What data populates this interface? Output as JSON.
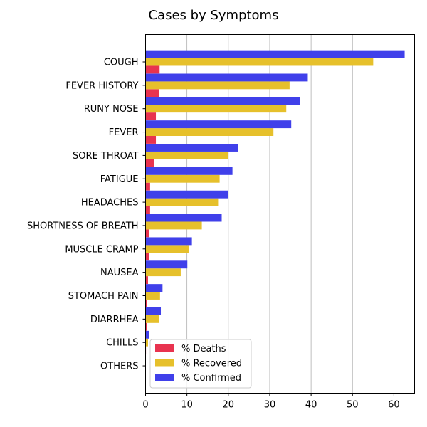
{
  "chart_data": {
    "type": "bar",
    "orientation": "horizontal",
    "title": "Cases by Symptoms",
    "xlabel": "",
    "ylabel": "",
    "xlim": [
      0,
      65
    ],
    "x_ticks": [
      0,
      10,
      20,
      30,
      40,
      50,
      60
    ],
    "grid": "vertical",
    "legend_position": "lower-left",
    "categories": [
      "COUGH",
      "FEVER HISTORY",
      "RUNY NOSE",
      "FEVER",
      "SORE THROAT",
      "FATIGUE",
      "HEADACHES",
      "SHORTNESS OF BREATH",
      "MUSCLE CRAMP",
      "NAUSEA",
      "STOMACH PAIN",
      "DIARRHEA",
      "CHILLS",
      "OTHERS"
    ],
    "series": [
      {
        "name": "% Deaths",
        "color": "#e8334f",
        "values": [
          3.4,
          3.2,
          2.5,
          2.5,
          2.1,
          1.1,
          1.1,
          0.9,
          0.8,
          0.6,
          0.4,
          0.3,
          0.1,
          0.0
        ]
      },
      {
        "name": "% Recovered",
        "color": "#e6c02b",
        "values": [
          55.0,
          34.8,
          34.0,
          30.9,
          20.0,
          17.9,
          17.7,
          13.6,
          10.4,
          8.5,
          3.5,
          3.2,
          0.6,
          0.0
        ]
      },
      {
        "name": "% Confirmed",
        "color": "#4040ea",
        "values": [
          62.6,
          39.2,
          37.4,
          35.2,
          22.4,
          21.0,
          20.0,
          18.4,
          11.2,
          10.1,
          4.1,
          3.7,
          0.8,
          0.0
        ]
      }
    ]
  }
}
